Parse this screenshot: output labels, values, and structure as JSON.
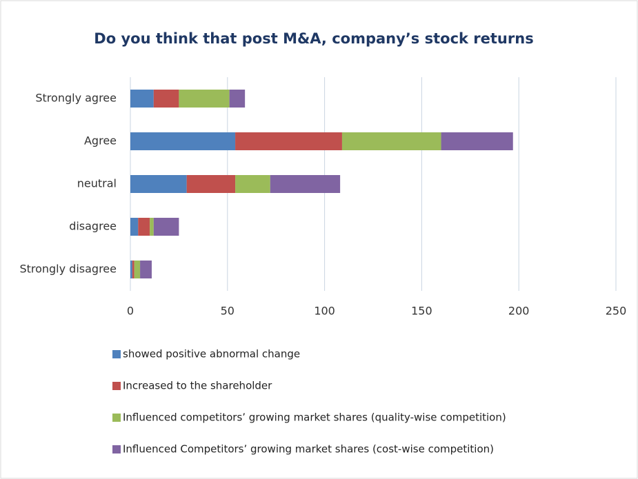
{
  "chart_data": {
    "type": "stacked-barh",
    "title": "Do you think that post M&A, company’s stock returns",
    "categories": [
      "Strongly agree",
      "Agree",
      "neutral",
      "disagree",
      "Strongly disagree"
    ],
    "series": [
      {
        "name": "showed positive abnormal change",
        "color": "#4f81bd",
        "values": [
          12,
          54,
          29,
          4,
          1
        ]
      },
      {
        "name": "Increased to the shareholder",
        "color": "#c0504d",
        "values": [
          13,
          55,
          25,
          6,
          1
        ]
      },
      {
        "name": "Influenced competitors’ growing market shares (quality-wise competition)",
        "color": "#9bbb59",
        "values": [
          26,
          51,
          18,
          2,
          3
        ]
      },
      {
        "name": "Influenced Competitors’ growing market shares (cost-wise competition)",
        "color": "#8064a2",
        "values": [
          8,
          37,
          36,
          13,
          6
        ]
      }
    ],
    "xlim": [
      0,
      250
    ],
    "xticks": [
      0,
      50,
      100,
      150,
      200,
      250
    ],
    "grid": true
  }
}
